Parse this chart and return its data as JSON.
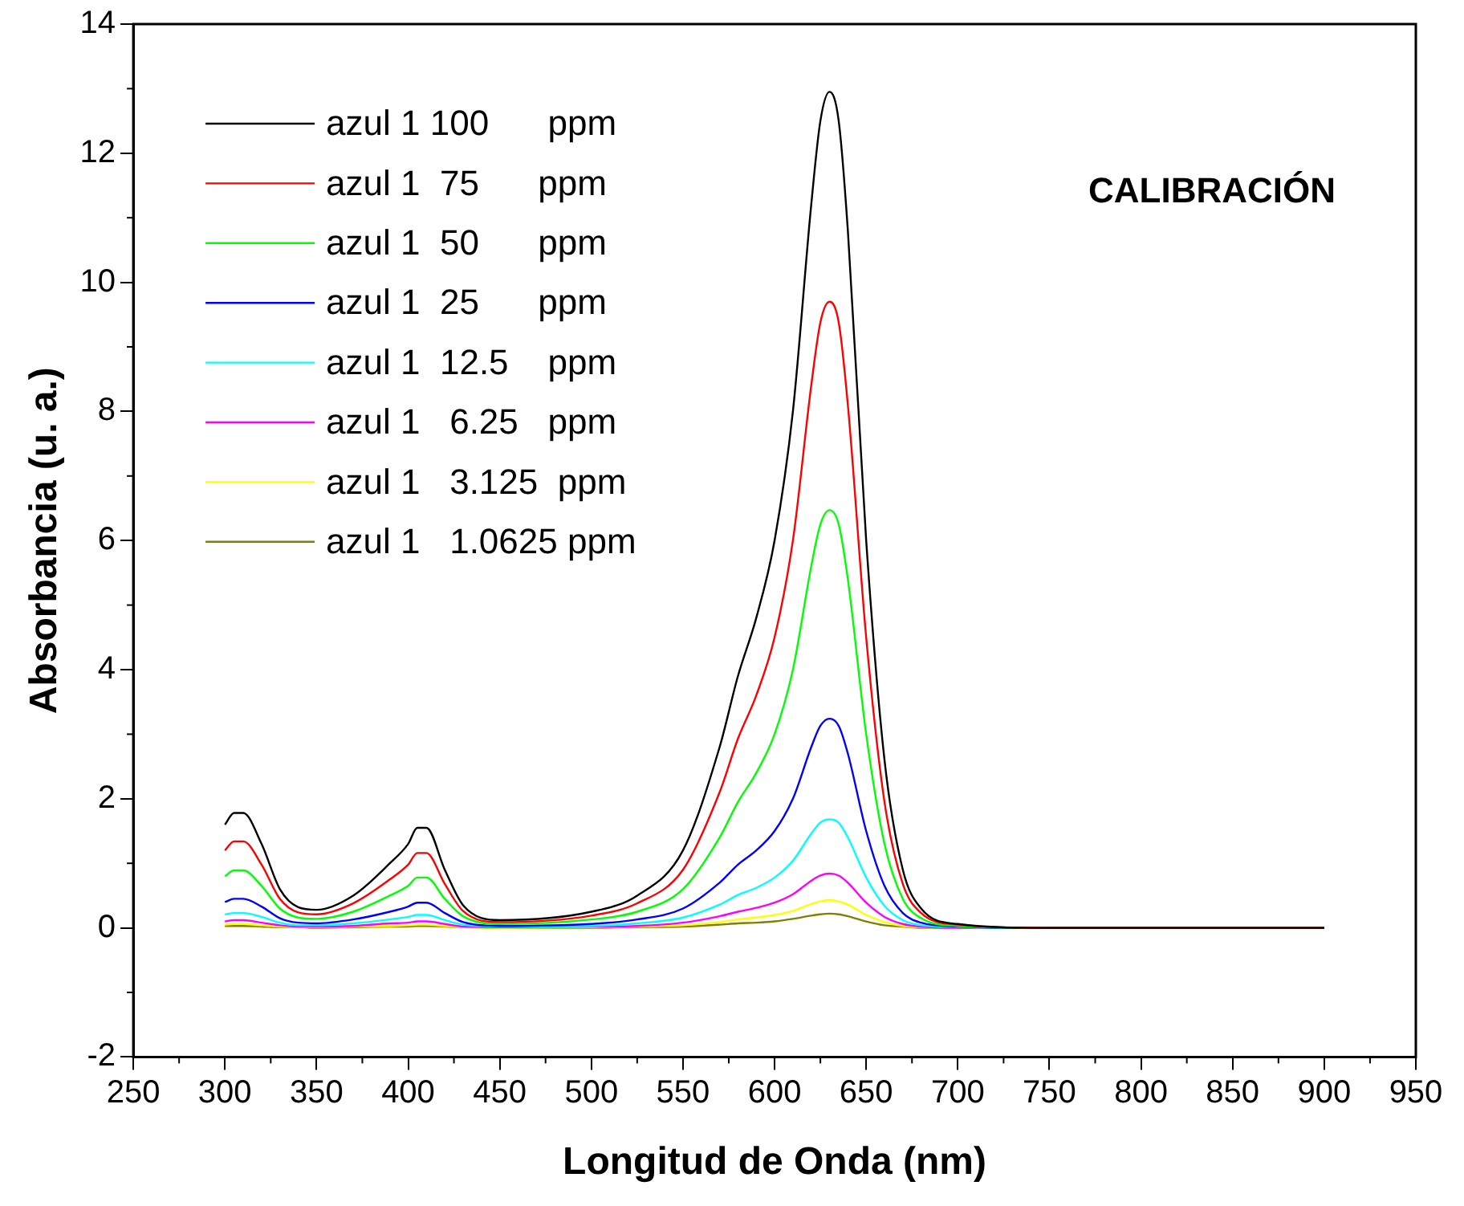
{
  "chart_data": {
    "type": "line",
    "xlabel": "Longitud de Onda (nm)",
    "ylabel": "Absorbancia (u. a.)",
    "annotations": [
      "CALIBRACIÓN"
    ],
    "xlim": [
      250,
      950
    ],
    "xticks": [
      250,
      300,
      350,
      400,
      450,
      500,
      550,
      600,
      650,
      700,
      750,
      800,
      850,
      900,
      950
    ],
    "ylim": [
      -2,
      14
    ],
    "yticks": [
      -2,
      0,
      2,
      4,
      6,
      8,
      10,
      12,
      14
    ],
    "grid": false,
    "legend": "top left",
    "marker": "none",
    "line_style": "solid",
    "x": [
      300,
      305,
      310,
      320,
      330,
      340,
      350,
      370,
      390,
      400,
      405,
      410,
      420,
      430,
      450,
      500,
      525,
      550,
      570,
      580,
      590,
      600,
      610,
      620,
      625,
      630,
      635,
      640,
      650,
      660,
      670,
      680,
      700,
      750,
      900
    ],
    "series": [
      {
        "name": "azul 1 100      ppm",
        "color": "#000000",
        "values": [
          1.6,
          1.78,
          1.78,
          1.3,
          0.6,
          0.32,
          0.28,
          0.5,
          1.0,
          1.3,
          1.55,
          1.55,
          0.9,
          0.35,
          0.12,
          0.25,
          0.5,
          1.2,
          2.8,
          3.9,
          4.8,
          6.0,
          8.0,
          11.2,
          12.5,
          12.95,
          12.5,
          10.8,
          6.0,
          2.6,
          0.9,
          0.3,
          0.06,
          0,
          0
        ]
      },
      {
        "name": "azul 1  75      ppm",
        "color": "#ff0000",
        "values": [
          1.2,
          1.34,
          1.34,
          0.98,
          0.45,
          0.24,
          0.21,
          0.38,
          0.75,
          0.98,
          1.16,
          1.16,
          0.68,
          0.26,
          0.09,
          0.19,
          0.38,
          0.9,
          2.1,
          2.93,
          3.6,
          4.5,
          6.0,
          8.4,
          9.38,
          9.7,
          9.38,
          8.1,
          4.5,
          1.95,
          0.68,
          0.23,
          0.05,
          0,
          0
        ]
      },
      {
        "name": "azul 1  50      ppm",
        "color": "#00ff00",
        "values": [
          0.8,
          0.89,
          0.89,
          0.65,
          0.3,
          0.16,
          0.14,
          0.25,
          0.5,
          0.65,
          0.78,
          0.78,
          0.45,
          0.18,
          0.06,
          0.13,
          0.25,
          0.6,
          1.4,
          1.95,
          2.4,
          3.0,
          4.0,
          5.6,
          6.25,
          6.47,
          6.25,
          5.4,
          3.0,
          1.3,
          0.45,
          0.15,
          0.03,
          0,
          0
        ]
      },
      {
        "name": "azul 1  25      ppm",
        "color": "#0000ff",
        "values": [
          0.4,
          0.45,
          0.45,
          0.33,
          0.15,
          0.08,
          0.07,
          0.13,
          0.25,
          0.33,
          0.39,
          0.39,
          0.23,
          0.09,
          0.03,
          0.06,
          0.13,
          0.3,
          0.7,
          0.98,
          1.2,
          1.5,
          2.0,
          2.8,
          3.13,
          3.24,
          3.13,
          2.7,
          1.5,
          0.65,
          0.23,
          0.08,
          0.02,
          0,
          0
        ]
      },
      {
        "name": "azul 1  12.5    ppm",
        "color": "#00ffff",
        "values": [
          0.21,
          0.23,
          0.23,
          0.17,
          0.08,
          0.04,
          0.04,
          0.07,
          0.13,
          0.17,
          0.2,
          0.2,
          0.12,
          0.05,
          0.02,
          0.03,
          0.07,
          0.16,
          0.36,
          0.51,
          0.62,
          0.78,
          1.04,
          1.46,
          1.63,
          1.68,
          1.63,
          1.4,
          0.78,
          0.34,
          0.12,
          0.04,
          0.01,
          0,
          0
        ]
      },
      {
        "name": "azul 1   6.25   ppm",
        "color": "#ff00ff",
        "values": [
          0.1,
          0.12,
          0.12,
          0.08,
          0.04,
          0.02,
          0.02,
          0.03,
          0.07,
          0.08,
          0.1,
          0.1,
          0.06,
          0.02,
          0.01,
          0.02,
          0.03,
          0.08,
          0.18,
          0.25,
          0.31,
          0.39,
          0.52,
          0.73,
          0.81,
          0.84,
          0.81,
          0.7,
          0.39,
          0.17,
          0.06,
          0.02,
          0,
          0,
          0
        ]
      },
      {
        "name": "azul 1   3.125  ppm",
        "color": "#ffff00",
        "values": [
          0.05,
          0.06,
          0.06,
          0.04,
          0.02,
          0.01,
          0.01,
          0.02,
          0.03,
          0.04,
          0.05,
          0.05,
          0.03,
          0.01,
          0,
          0.01,
          0.02,
          0.04,
          0.09,
          0.13,
          0.16,
          0.2,
          0.26,
          0.37,
          0.41,
          0.43,
          0.41,
          0.36,
          0.2,
          0.09,
          0.03,
          0.01,
          0,
          null,
          null
        ]
      },
      {
        "name": "azul 1   1.0625 ppm",
        "color": "#808000",
        "values": [
          0.03,
          0.03,
          0.03,
          0.02,
          0.01,
          0.01,
          0,
          0.01,
          0.02,
          0.02,
          0.03,
          0.03,
          0.02,
          0.01,
          0,
          0,
          0.01,
          0.02,
          0.05,
          0.07,
          0.08,
          0.1,
          0.14,
          0.19,
          0.21,
          0.22,
          0.21,
          0.18,
          0.1,
          0.04,
          0.02,
          0,
          0,
          0,
          0
        ]
      }
    ]
  }
}
